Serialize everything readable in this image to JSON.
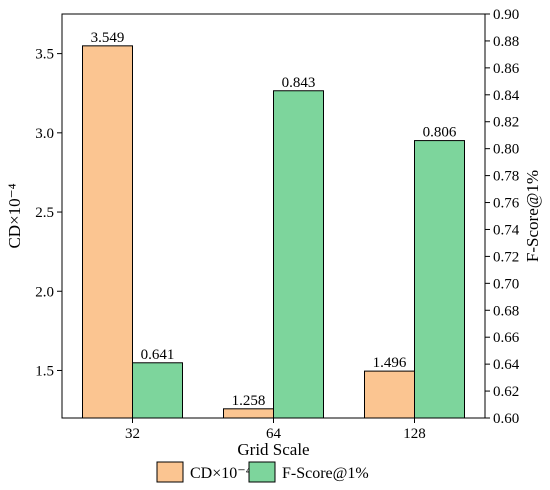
{
  "chart_data": {
    "type": "bar",
    "categories": [
      "32",
      "64",
      "128"
    ],
    "xlabel": "Grid Scale",
    "series": [
      {
        "name": "CD×10⁻⁴",
        "axis": "left",
        "color": "#FBC591",
        "values": [
          3.549,
          1.258,
          1.496
        ],
        "labels": [
          "3.549",
          "1.258",
          "1.496"
        ]
      },
      {
        "name": "F-Score@1%",
        "axis": "right",
        "color": "#7DD59C",
        "values": [
          0.641,
          0.843,
          0.806
        ],
        "labels": [
          "0.641",
          "0.843",
          "0.806"
        ]
      }
    ],
    "y_left": {
      "label": "CD×10⁻⁴",
      "lim": [
        1.2,
        3.75
      ],
      "ticks": [
        1.5,
        2.0,
        2.5,
        3.0,
        3.5
      ],
      "tick_labels": [
        "1.5",
        "2.0",
        "2.5",
        "3.0",
        "3.5"
      ]
    },
    "y_right": {
      "label": "F-Score@1%",
      "lim": [
        0.6,
        0.9
      ],
      "ticks": [
        0.6,
        0.62,
        0.64,
        0.66,
        0.68,
        0.7,
        0.72,
        0.74,
        0.76,
        0.78,
        0.8,
        0.82,
        0.84,
        0.86,
        0.88,
        0.9
      ],
      "tick_labels": [
        "0.60",
        "0.62",
        "0.64",
        "0.66",
        "0.68",
        "0.70",
        "0.72",
        "0.74",
        "0.76",
        "0.78",
        "0.80",
        "0.82",
        "0.84",
        "0.86",
        "0.88",
        "0.90"
      ]
    },
    "legend_position": "bottom",
    "grid": false
  }
}
